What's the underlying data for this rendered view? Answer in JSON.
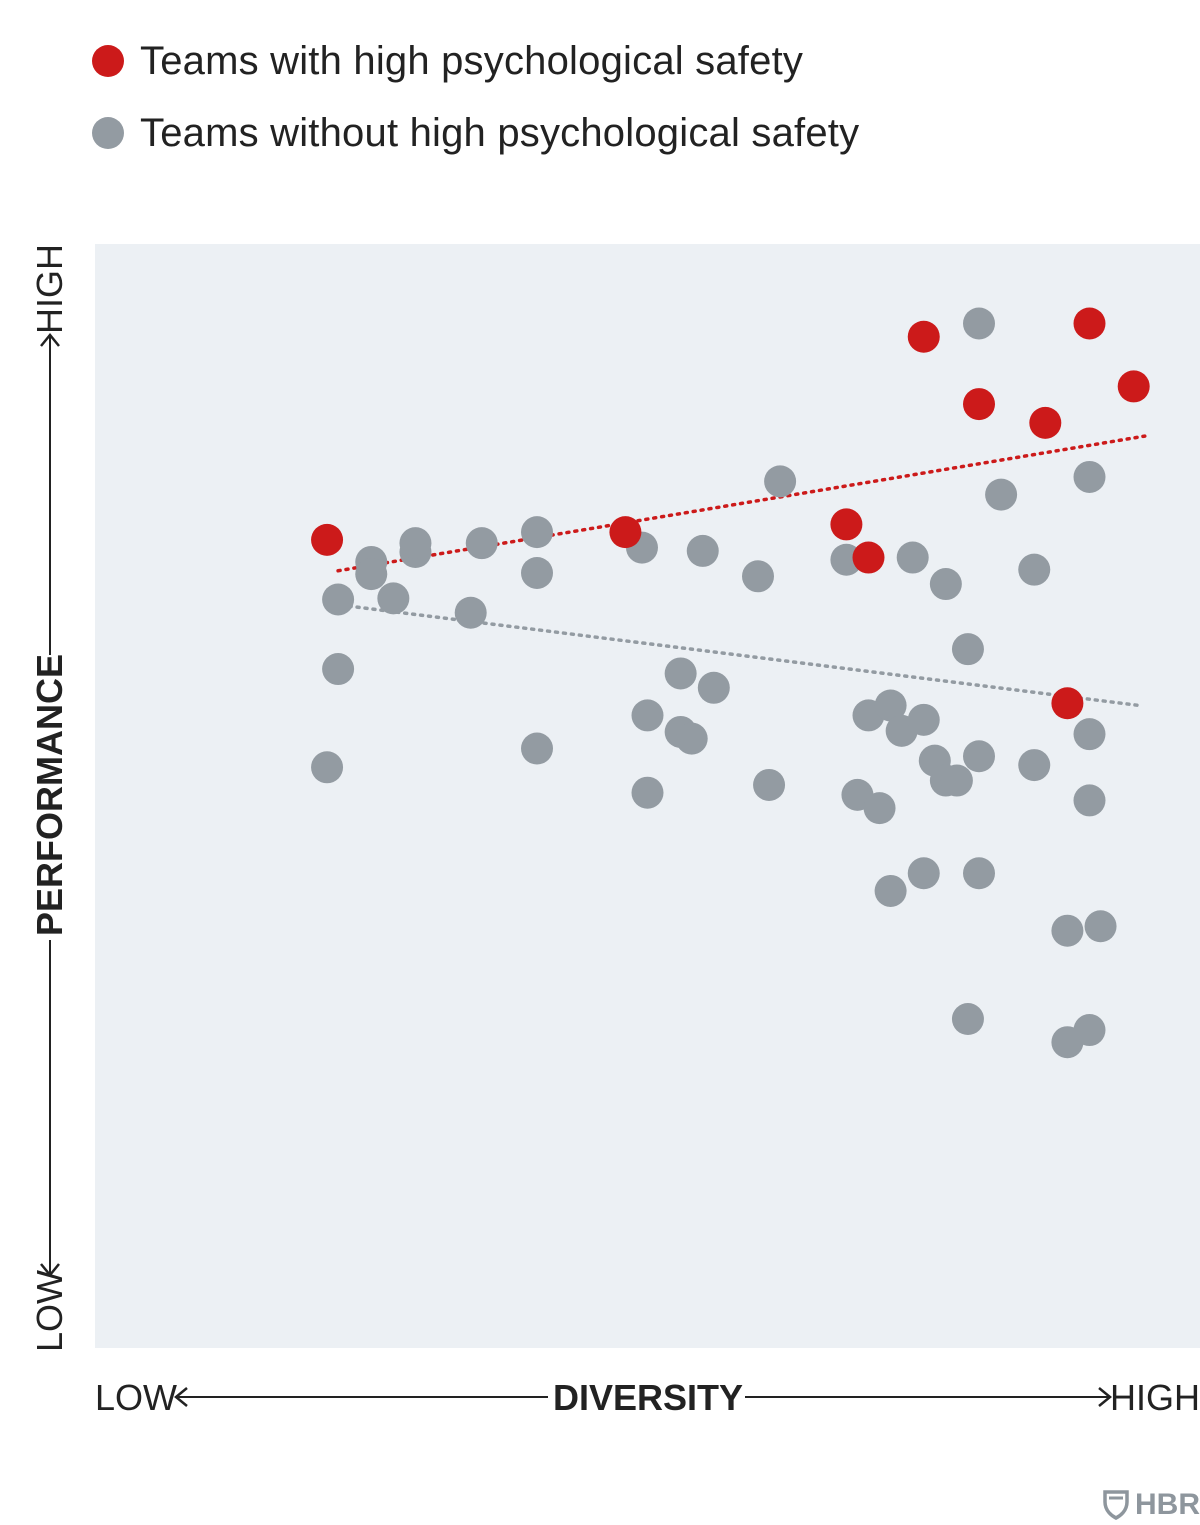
{
  "legend": {
    "high": {
      "label": "Teams with high psychological safety",
      "color": "#cc1a1a"
    },
    "low": {
      "label": "Teams without high psychological safety",
      "color": "#939ba2"
    }
  },
  "brand": {
    "text": "HBR",
    "icon": "hbr-shield-icon"
  },
  "chart_data": {
    "type": "scatter",
    "title": "",
    "xlabel": "DIVERSITY",
    "ylabel": "PERFORMANCE",
    "x_low_label": "LOW",
    "x_high_label": "HIGH",
    "y_low_label": "LOW",
    "y_high_label": "HIGH",
    "xlim": [
      0,
      100
    ],
    "ylim": [
      0,
      100
    ],
    "grid": false,
    "legend_position": "top-left",
    "series": [
      {
        "name": "Teams with high psychological safety",
        "color": "#cc1a1a",
        "points": [
          [
            21,
            73.2
          ],
          [
            48,
            73.9
          ],
          [
            68,
            74.6
          ],
          [
            70,
            71.6
          ],
          [
            75,
            91.6
          ],
          [
            80,
            85.5
          ],
          [
            86,
            83.8
          ],
          [
            90,
            92.8
          ],
          [
            94,
            87.1
          ],
          [
            88,
            58.4
          ]
        ],
        "trend": [
          [
            22,
            70.4
          ],
          [
            95,
            82.6
          ]
        ]
      },
      {
        "name": "Teams without high psychological safety",
        "color": "#939ba2",
        "points": [
          [
            80,
            92.8
          ],
          [
            62,
            78.5
          ],
          [
            82,
            77.3
          ],
          [
            90,
            78.9
          ],
          [
            49.5,
            72.5
          ],
          [
            22,
            67.8
          ],
          [
            22,
            61.5
          ],
          [
            21,
            52.6
          ],
          [
            25,
            71.2
          ],
          [
            25,
            70.1
          ],
          [
            29,
            72.1
          ],
          [
            29,
            72.9
          ],
          [
            35,
            72.9
          ],
          [
            27,
            67.9
          ],
          [
            34,
            66.6
          ],
          [
            40,
            73.9
          ],
          [
            40,
            70.2
          ],
          [
            55,
            72.2
          ],
          [
            60,
            69.9
          ],
          [
            68,
            71.4
          ],
          [
            74,
            71.6
          ],
          [
            77,
            69.2
          ],
          [
            85,
            70.5
          ],
          [
            79,
            63.3
          ],
          [
            53,
            61.1
          ],
          [
            56,
            59.8
          ],
          [
            50,
            57.3
          ],
          [
            53,
            55.8
          ],
          [
            54,
            55.2
          ],
          [
            70,
            57.3
          ],
          [
            72,
            58.2
          ],
          [
            73,
            55.9
          ],
          [
            75,
            56.9
          ],
          [
            76,
            53.2
          ],
          [
            77,
            51.4
          ],
          [
            78,
            51.4
          ],
          [
            80,
            53.6
          ],
          [
            85,
            52.8
          ],
          [
            90,
            55.6
          ],
          [
            40,
            54.3
          ],
          [
            50,
            50.3
          ],
          [
            61,
            51.0
          ],
          [
            69,
            50.1
          ],
          [
            71,
            48.9
          ],
          [
            90,
            49.6
          ],
          [
            72,
            41.4
          ],
          [
            75,
            43.0
          ],
          [
            80,
            43.0
          ],
          [
            88,
            37.8
          ],
          [
            91,
            38.2
          ],
          [
            79,
            29.8
          ],
          [
            88,
            27.7
          ],
          [
            90,
            28.8
          ]
        ],
        "trend": [
          [
            23,
            67.2
          ],
          [
            94.5,
            58.2
          ]
        ]
      }
    ]
  }
}
